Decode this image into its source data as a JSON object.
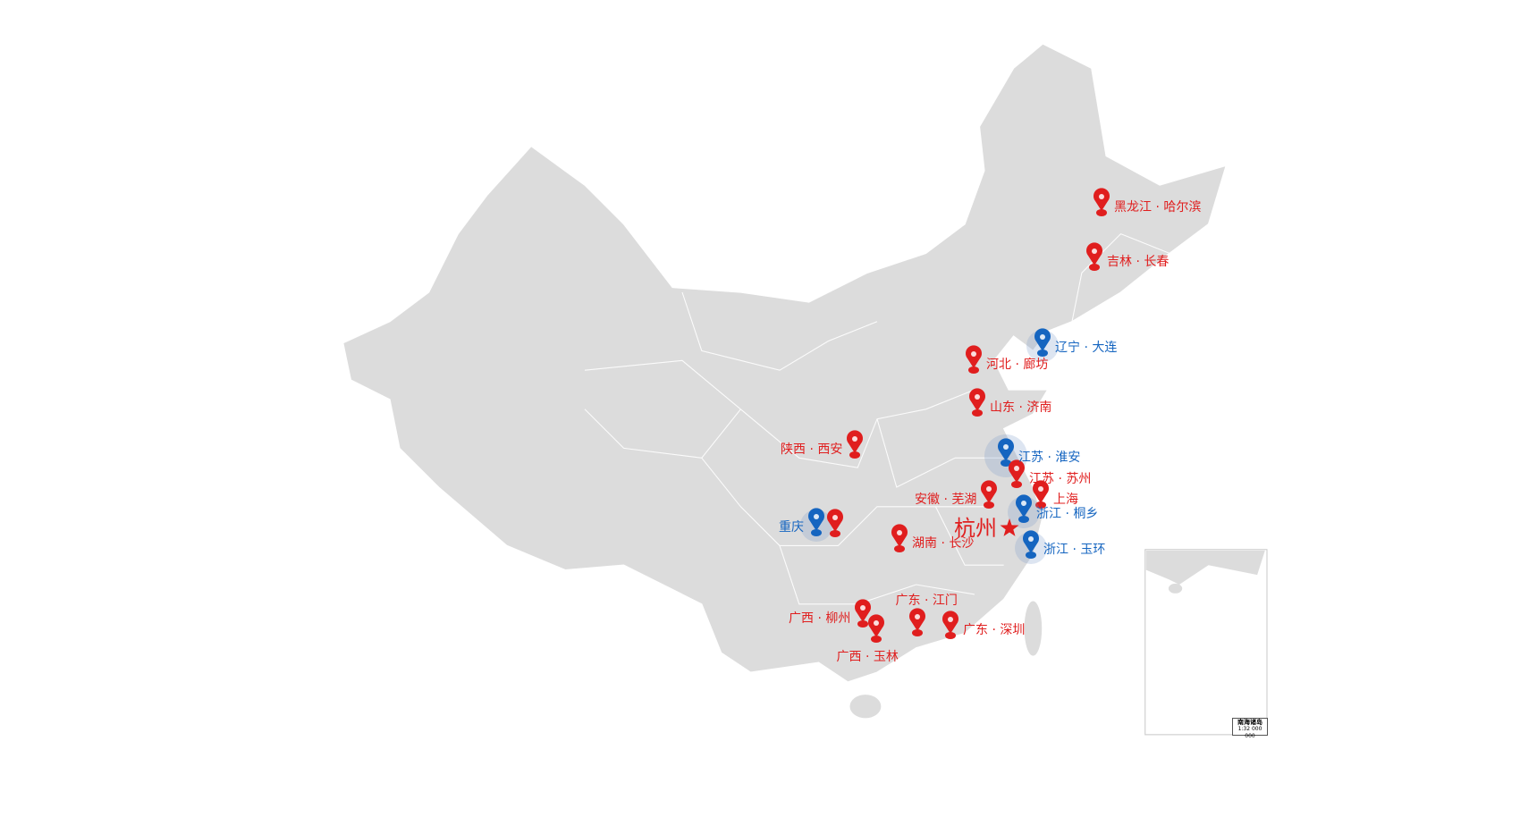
{
  "map": {
    "region": "China",
    "land_color": "#dcdcdc",
    "border_color": "#ffffff",
    "inset": {
      "title": "南海诸岛",
      "scale": "1:32 000 000"
    }
  },
  "colors": {
    "red": "#e01e1e",
    "blue": "#1565c0"
  },
  "markers": [
    {
      "label": "黑龙江 · 哈尔滨",
      "color": "red",
      "icon": "map-pin-icon"
    },
    {
      "label": "吉林 · 长春",
      "color": "red",
      "icon": "map-pin-icon"
    },
    {
      "label": "辽宁 · 大连",
      "color": "blue",
      "icon": "map-pin-icon"
    },
    {
      "label": "河北 · 廊坊",
      "color": "red",
      "icon": "map-pin-icon"
    },
    {
      "label": "山东 · 济南",
      "color": "red",
      "icon": "map-pin-icon"
    },
    {
      "label": "陕西 · 西安",
      "color": "red",
      "icon": "map-pin-icon"
    },
    {
      "label": "江苏 · 淮安",
      "color": "blue",
      "icon": "map-pin-icon"
    },
    {
      "label": "江苏 · 苏州",
      "color": "red",
      "icon": "map-pin-icon"
    },
    {
      "label": "安徽 · 芜湖",
      "color": "red",
      "icon": "map-pin-icon"
    },
    {
      "label": "上海",
      "color": "red",
      "icon": "map-pin-icon"
    },
    {
      "label": "浙江 · 桐乡",
      "color": "blue",
      "icon": "map-pin-icon"
    },
    {
      "label": "杭州",
      "color": "red",
      "icon": "star-icon"
    },
    {
      "label": "浙江 · 玉环",
      "color": "blue",
      "icon": "map-pin-icon"
    },
    {
      "label": "重庆",
      "color": "blue",
      "icon": "map-pin-icon"
    },
    {
      "label": "",
      "color": "red",
      "icon": "map-pin-icon"
    },
    {
      "label": "湖南 · 长沙",
      "color": "red",
      "icon": "map-pin-icon"
    },
    {
      "label": "广西 · 柳州",
      "color": "red",
      "icon": "map-pin-icon"
    },
    {
      "label": "广西 · 玉林",
      "color": "red",
      "icon": "map-pin-icon"
    },
    {
      "label": "广东 · 江门",
      "color": "red",
      "icon": "map-pin-icon"
    },
    {
      "label": "广东 · 深圳",
      "color": "red",
      "icon": "map-pin-icon"
    }
  ]
}
